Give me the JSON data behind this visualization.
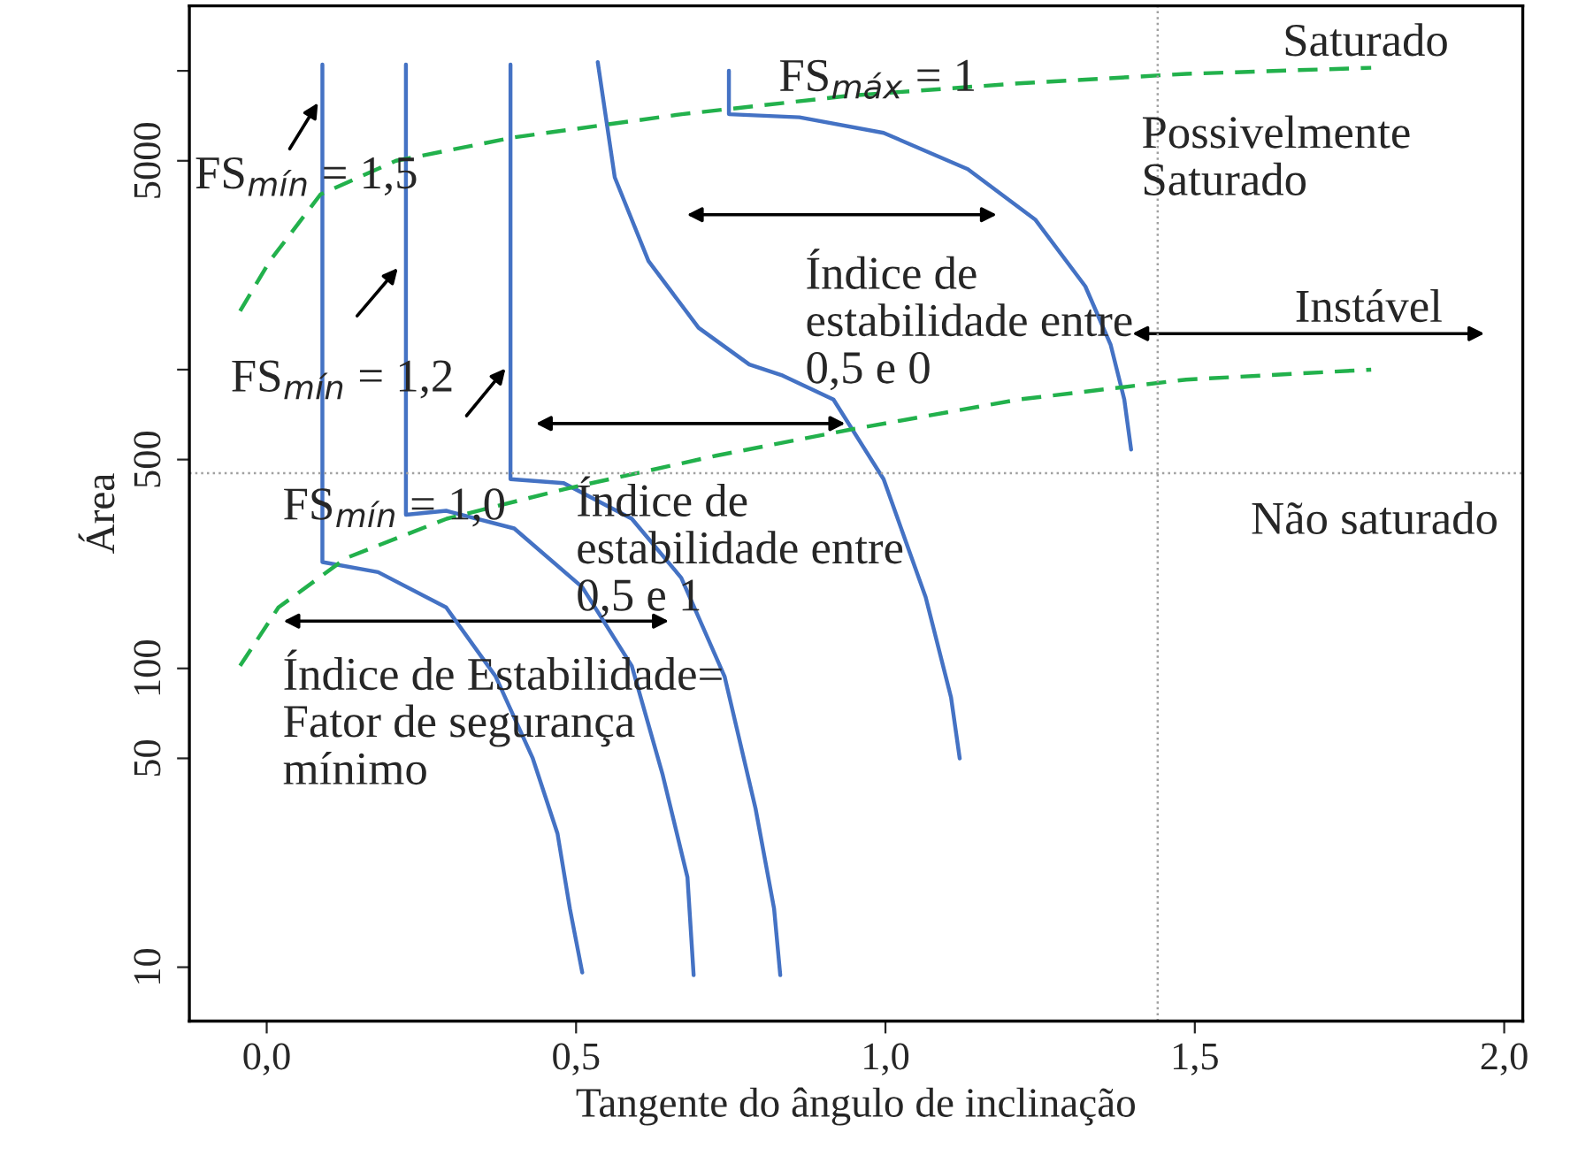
{
  "chart_data": {
    "type": "line",
    "xlabel": "Tangente do ângulo de inclinação",
    "ylabel": "Área",
    "log": "y",
    "xlim": [
      -0.125,
      2.03
    ],
    "ylim": [
      6.6,
      16500
    ],
    "xticks": [
      {
        "value": 0,
        "label": "0,0"
      },
      {
        "value": 0.5,
        "label": "0,5"
      },
      {
        "value": 1,
        "label": "1,0"
      },
      {
        "value": 1.5,
        "label": "1,5"
      },
      {
        "value": 2,
        "label": "2,0"
      }
    ],
    "yticks": [
      10,
      50,
      100,
      500,
      {
        "value": 1000,
        "label": null
      },
      5000,
      {
        "value": 10000,
        "label": null
      }
    ],
    "grid": false,
    "legend": false,
    "marker": "none",
    "series": [
      {
        "color": "#4472c4",
        "line_style": "solid",
        "x": [
          0.09,
          0.09,
          0.18,
          0.29,
          0.37,
          0.43,
          0.47,
          0.49,
          0.51
        ],
        "values": [
          10500,
          227,
          210,
          160,
          94,
          50,
          28,
          15.7,
          9.6
        ]
      },
      {
        "color": "#4472c4",
        "line_style": "solid",
        "x": [
          0.225,
          0.225,
          0.29,
          0.4,
          0.51,
          0.59,
          0.64,
          0.68,
          0.69
        ],
        "values": [
          10500,
          327,
          337,
          294,
          187,
          102,
          44,
          20,
          9.4
        ]
      },
      {
        "color": "#4472c4",
        "line_style": "solid",
        "x": [
          0.394,
          0.394,
          0.48,
          0.59,
          0.67,
          0.74,
          0.79,
          0.82,
          0.83
        ],
        "values": [
          10500,
          430,
          417,
          317,
          201,
          94,
          34,
          15.7,
          9.4
        ]
      },
      {
        "color": "#4472c4",
        "line_style": "solid",
        "x": [
          0.535,
          0.5625,
          0.617,
          0.698,
          0.78,
          0.834,
          0.916,
          0.997,
          1.065,
          1.106,
          1.12
        ],
        "values": [
          10700,
          4400,
          2310,
          1380,
          1040,
          955,
          794,
          430,
          173,
          80,
          50
        ]
      },
      {
        "color": "#4472c4",
        "line_style": "solid",
        "x": [
          0.747,
          0.747,
          0.861,
          0.997,
          1.133,
          1.242,
          1.323,
          1.364,
          1.386,
          1.397
        ],
        "values": [
          10000,
          7160,
          6990,
          6200,
          4690,
          3180,
          1900,
          1210,
          794,
          540
        ]
      },
      {
        "color": "#22b14c",
        "line_style": "dashed",
        "x": [
          -0.043,
          0.005,
          0.087,
          0.209,
          0.4,
          0.671,
          0.943,
          1.215,
          1.486,
          1.785
        ],
        "values": [
          1570,
          2310,
          3860,
          5000,
          5990,
          7160,
          8260,
          9080,
          9770,
          10240
        ]
      },
      {
        "color": "#22b14c",
        "line_style": "dashed",
        "x": [
          -0.043,
          0.019,
          0.128,
          0.291,
          0.481,
          0.726,
          0.943,
          1.215,
          1.486,
          1.785
        ],
        "values": [
          102,
          160,
          234,
          317,
          398,
          515,
          630,
          794,
          926,
          1000
        ]
      }
    ],
    "ref_lines": [
      {
        "axis": "x",
        "value": 1.44,
        "color": "#a0a0a0",
        "line_style": "dotted"
      },
      {
        "axis": "y",
        "value": 450,
        "color": "#a0a0a0",
        "line_style": "dotted"
      }
    ],
    "annotations": [
      "Saturado",
      "Possivelmente\nSaturado",
      "Instável",
      "Não saturado",
      "Índice de\nestabilidade entre\n0,5 e 0",
      "Índice de\nestabilidade entre\n0,5 e 1",
      "Índice de Estabilidade=\nFator de segurança\nmínimo",
      "FS$_{mín}$ = 1,5",
      "FS$_{mín}$ = 1,2",
      "FS$_{mín}$ = 1,0",
      "FS$_{máx}$ = 1"
    ]
  }
}
